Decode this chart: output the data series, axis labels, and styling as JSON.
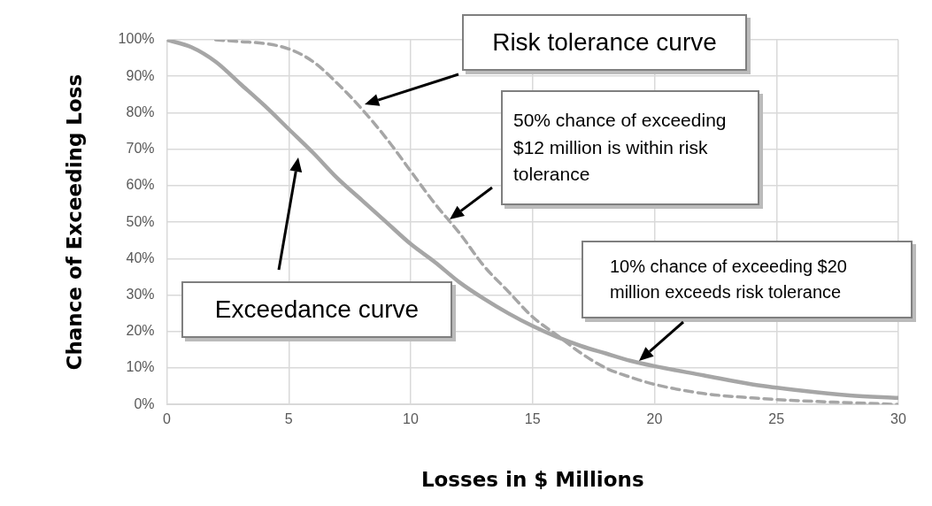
{
  "chart_data": {
    "type": "line",
    "xlabel": "Losses in $ Millions",
    "ylabel": "Chance of Exceeding Loss",
    "series": [
      {
        "color": "#a6a6a6",
        "line_style": "solid",
        "x": [
          0,
          1,
          2,
          3,
          4,
          5,
          6,
          7,
          8,
          9,
          10,
          11,
          12,
          13,
          14,
          15,
          16,
          17,
          18,
          19,
          20,
          22,
          24,
          26,
          28,
          30
        ],
        "values": [
          100,
          98,
          94,
          88,
          82,
          75.5,
          69,
          62,
          56,
          50,
          44,
          39,
          33.5,
          29,
          25,
          21.5,
          18.5,
          16,
          14,
          12,
          10.5,
          8,
          5.5,
          3.8,
          2.5,
          1.8
        ]
      },
      {
        "color": "#a6a6a6",
        "line_style": "dashed",
        "x": [
          2,
          3,
          4,
          5,
          6,
          7,
          8,
          9,
          10,
          11,
          12,
          13,
          14,
          15,
          16,
          17,
          18,
          19,
          20,
          22,
          24,
          26,
          28,
          30
        ],
        "values": [
          100,
          99.5,
          99,
          97.5,
          94,
          88,
          81,
          73,
          64,
          55,
          47,
          38,
          31,
          24,
          19,
          14,
          10,
          7.5,
          5.5,
          3,
          1.8,
          1,
          0.5,
          0
        ]
      }
    ],
    "xlim": [
      0,
      30
    ],
    "xticks": [
      0,
      5,
      10,
      15,
      20,
      25,
      30
    ],
    "ylim": [
      0,
      100
    ],
    "yticks": [
      {
        "value": 0,
        "label": "0%"
      },
      {
        "value": 10,
        "label": "10%"
      },
      {
        "value": 20,
        "label": "20%"
      },
      {
        "value": 30,
        "label": "30%"
      },
      {
        "value": 40,
        "label": "40%"
      },
      {
        "value": 50,
        "label": "50%"
      },
      {
        "value": 60,
        "label": "60%"
      },
      {
        "value": 70,
        "label": "70%"
      },
      {
        "value": 80,
        "label": "80%"
      },
      {
        "value": 90,
        "label": "90%"
      },
      {
        "value": 100,
        "label": "100%"
      }
    ],
    "grid": true,
    "legend": false,
    "marker": "none",
    "annotations": [
      "Risk tolerance curve",
      "50% chance of exceeding $12 million is within risk tolerance",
      "Exceedance curve",
      "10% chance of exceeding $20 million exceeds risk tolerance"
    ]
  }
}
